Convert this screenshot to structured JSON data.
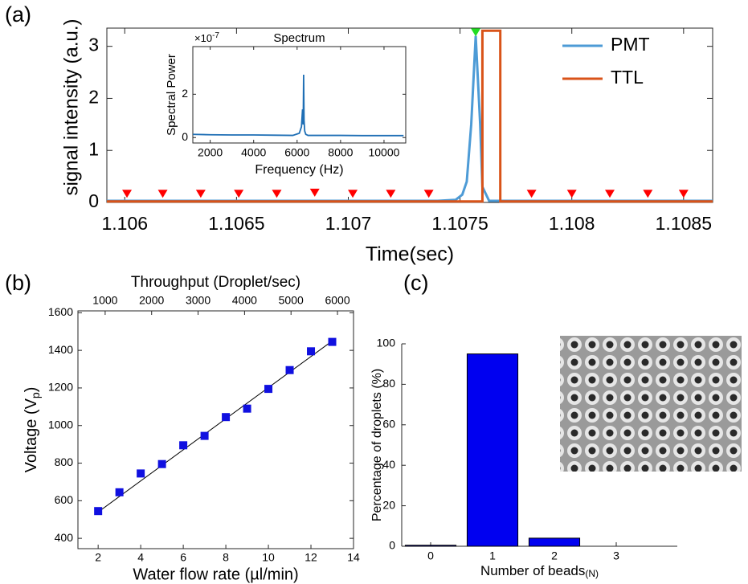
{
  "chart_data": [
    {
      "type": "line",
      "panel_label": "(a)",
      "xlabel": "Time(sec)",
      "ylabel": "signal intensity (a.u.)",
      "xlim": [
        1.10592,
        1.10863
      ],
      "ylim": [
        0,
        3.35
      ],
      "xticks": [
        1.106,
        1.1065,
        1.107,
        1.1075,
        1.108,
        1.1085
      ],
      "yticks": [
        0,
        1,
        2,
        3
      ],
      "legend": "upper right",
      "series": [
        {
          "name": "PMT",
          "color": "#4d9bd6",
          "x": [
            1.10592,
            1.1074,
            1.10748,
            1.10751,
            1.10753,
            1.10755,
            1.10757,
            1.10759,
            1.1076,
            1.10763,
            1.10863
          ],
          "values": [
            0.03,
            0.03,
            0.05,
            0.15,
            0.4,
            1.5,
            3.2,
            1.5,
            0.3,
            0.03,
            0.03
          ]
        },
        {
          "name": "TTL",
          "color": "#d95319",
          "x": [
            1.10592,
            1.1076,
            1.1076,
            1.10768,
            1.10768,
            1.10863
          ],
          "values": [
            0.02,
            0.02,
            3.3,
            3.3,
            0.02,
            0.02
          ]
        }
      ],
      "peaks": {
        "color": "#ff0000",
        "x": [
          1.10617,
          1.10634,
          1.10651,
          1.10668,
          1.10685,
          1.10702,
          1.10719,
          1.10736,
          1.10782,
          1.108,
          1.10817,
          1.10834,
          1.1085,
          1.10601
        ],
        "values": [
          0.12,
          0.12,
          0.12,
          0.12,
          0.14,
          0.12,
          0.12,
          0.12,
          0.12,
          0.12,
          0.12,
          0.12,
          0.12,
          0.12
        ]
      },
      "main_peak": {
        "color": "#22dd22",
        "x": 1.10757,
        "value": 3.22
      }
    },
    {
      "type": "line",
      "title": "Spectrum",
      "xlabel": "Frequency (Hz)",
      "ylabel": "Spectral Power",
      "y_multiplier": {
        "base": "×10",
        "exponent": "-7"
      },
      "xlim": [
        1200,
        11000
      ],
      "ylim": [
        -0.25,
        4.2
      ],
      "xticks": [
        2000,
        4000,
        6000,
        8000,
        10000
      ],
      "yticks": [
        0,
        2
      ],
      "series": [
        {
          "color": "#1f6fb5",
          "x": [
            1200,
            2000,
            3000,
            4000,
            5000,
            5800,
            6100,
            6200,
            6250,
            6280,
            6300,
            6320,
            6350,
            6400,
            6500,
            7000,
            8000,
            9000,
            10000,
            10900
          ],
          "values": [
            0.15,
            0.13,
            0.12,
            0.12,
            0.11,
            0.1,
            0.2,
            0.5,
            1.3,
            0.6,
            2.9,
            0.8,
            0.3,
            0.15,
            0.1,
            0.1,
            0.1,
            0.09,
            0.09,
            0.09
          ]
        }
      ]
    },
    {
      "type": "scatter",
      "panel_label": "(b)",
      "xlabel": "Water flow rate (µl/min)",
      "ylabel": [
        "Voltage (V",
        "p",
        ")"
      ],
      "x2label": "Throughput (Droplet/sec)",
      "xlim": [
        1.05,
        14
      ],
      "ylim": [
        345,
        1610
      ],
      "x2lim": [
        414,
        6345
      ],
      "xticks": [
        2,
        4,
        6,
        8,
        10,
        12,
        14
      ],
      "yticks": [
        400,
        600,
        800,
        1000,
        1200,
        1400,
        1600
      ],
      "x2ticks": [
        1000,
        2000,
        3000,
        4000,
        5000,
        6000
      ],
      "color": "#1010e0",
      "x": [
        2,
        3,
        4,
        5,
        6,
        7,
        8,
        9,
        10,
        11,
        12,
        13
      ],
      "values": [
        545,
        645,
        745,
        795,
        895,
        945,
        1045,
        1090,
        1195,
        1295,
        1395,
        1445
      ],
      "fit": {
        "color": "#000000",
        "x": [
          2,
          13
        ],
        "values": [
          540,
          1450
        ]
      }
    },
    {
      "type": "bar",
      "panel_label": "(c)",
      "xlabel": "Number of beads",
      "xlabel_unit": "(N)",
      "ylabel": "Percentage of droplets (%)",
      "categories": [
        "0",
        "1",
        "2",
        "3"
      ],
      "values": [
        0.5,
        95,
        4,
        0
      ],
      "ylim": [
        0,
        100
      ],
      "yticks": [
        0,
        20,
        40,
        60,
        80,
        100
      ],
      "color": "#0000f0"
    }
  ]
}
